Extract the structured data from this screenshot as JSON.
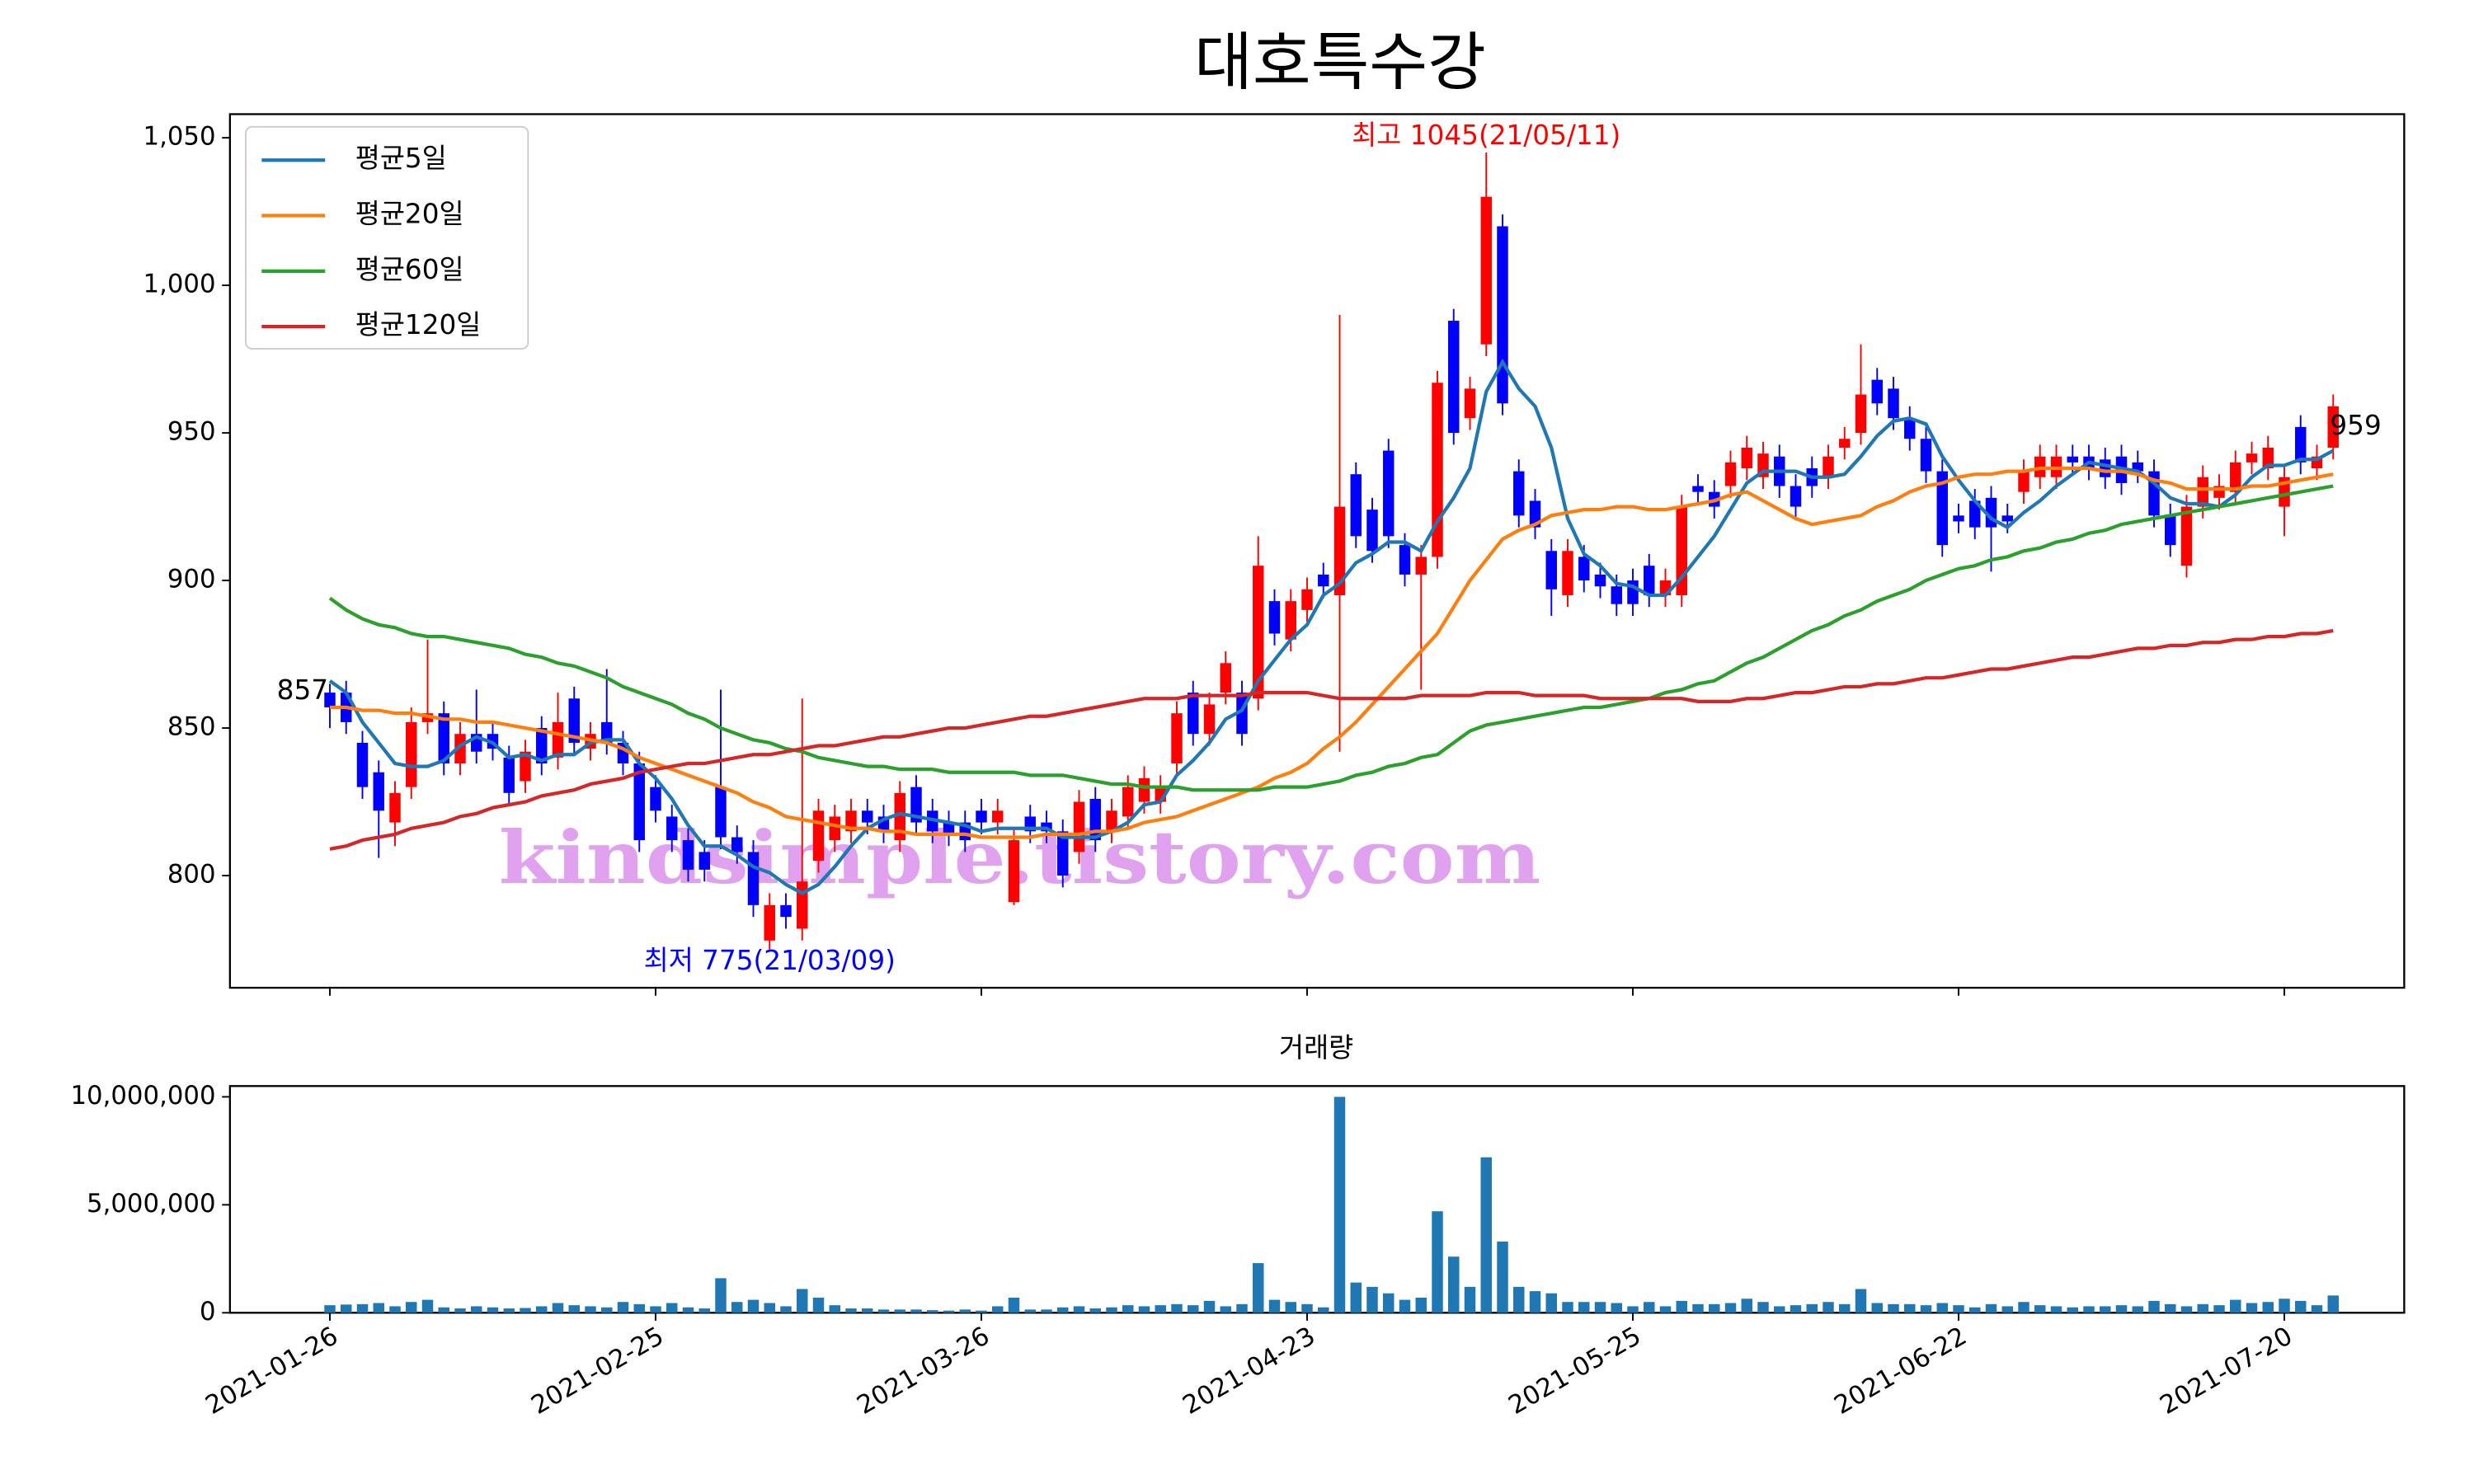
{
  "chart_data": {
    "type": "candlestick",
    "title": "대호특수강",
    "up_color": "#ff0000",
    "down_color": "#0000ff",
    "x": [
      "2021-01-26",
      "2021-01-27",
      "2021-01-28",
      "2021-01-29",
      "2021-02-01",
      "2021-02-02",
      "2021-02-03",
      "2021-02-04",
      "2021-02-05",
      "2021-02-08",
      "2021-02-09",
      "2021-02-10",
      "2021-02-15",
      "2021-02-16",
      "2021-02-17",
      "2021-02-18",
      "2021-02-19",
      "2021-02-22",
      "2021-02-23",
      "2021-02-24",
      "2021-02-25",
      "2021-02-26",
      "2021-03-02",
      "2021-03-03",
      "2021-03-04",
      "2021-03-05",
      "2021-03-08",
      "2021-03-09",
      "2021-03-10",
      "2021-03-11",
      "2021-03-12",
      "2021-03-15",
      "2021-03-16",
      "2021-03-17",
      "2021-03-18",
      "2021-03-19",
      "2021-03-22",
      "2021-03-23",
      "2021-03-24",
      "2021-03-25",
      "2021-03-26",
      "2021-03-29",
      "2021-03-30",
      "2021-03-31",
      "2021-04-01",
      "2021-04-02",
      "2021-04-05",
      "2021-04-06",
      "2021-04-07",
      "2021-04-08",
      "2021-04-09",
      "2021-04-12",
      "2021-04-13",
      "2021-04-14",
      "2021-04-15",
      "2021-04-16",
      "2021-04-19",
      "2021-04-20",
      "2021-04-21",
      "2021-04-22",
      "2021-04-23",
      "2021-04-26",
      "2021-04-27",
      "2021-04-28",
      "2021-04-29",
      "2021-04-30",
      "2021-05-03",
      "2021-05-04",
      "2021-05-06",
      "2021-05-07",
      "2021-05-10",
      "2021-05-11",
      "2021-05-12",
      "2021-05-13",
      "2021-05-14",
      "2021-05-17",
      "2021-05-18",
      "2021-05-20",
      "2021-05-21",
      "2021-05-24",
      "2021-05-25",
      "2021-05-26",
      "2021-05-27",
      "2021-05-28",
      "2021-05-31",
      "2021-06-01",
      "2021-06-02",
      "2021-06-03",
      "2021-06-04",
      "2021-06-07",
      "2021-06-08",
      "2021-06-09",
      "2021-06-10",
      "2021-06-11",
      "2021-06-14",
      "2021-06-15",
      "2021-06-16",
      "2021-06-17",
      "2021-06-18",
      "2021-06-21",
      "2021-06-22",
      "2021-06-23",
      "2021-06-24",
      "2021-06-25",
      "2021-06-28",
      "2021-06-29",
      "2021-06-30",
      "2021-07-01",
      "2021-07-02",
      "2021-07-05",
      "2021-07-06",
      "2021-07-07",
      "2021-07-08",
      "2021-07-09",
      "2021-07-12",
      "2021-07-13",
      "2021-07-14",
      "2021-07-15",
      "2021-07-16",
      "2021-07-19",
      "2021-07-20",
      "2021-07-21",
      "2021-07-22",
      "2021-07-23"
    ],
    "open": [
      862,
      862,
      845,
      835,
      818,
      830,
      852,
      855,
      838,
      848,
      848,
      840,
      832,
      850,
      840,
      860,
      843,
      852,
      845,
      838,
      830,
      820,
      812,
      808,
      830,
      813,
      808,
      778,
      790,
      782,
      805,
      812,
      815,
      822,
      820,
      812,
      830,
      822,
      818,
      818,
      822,
      818,
      791,
      820,
      818,
      815,
      808,
      826,
      815,
      820,
      825,
      825,
      838,
      862,
      848,
      862,
      862,
      860,
      893,
      880,
      890,
      902,
      895,
      936,
      924,
      944,
      912,
      902,
      908,
      988,
      955,
      980,
      1020,
      937,
      927,
      910,
      895,
      908,
      902,
      898,
      900,
      905,
      895,
      895,
      932,
      930,
      932,
      938,
      935,
      942,
      932,
      938,
      935,
      945,
      950,
      968,
      965,
      955,
      948,
      937,
      922,
      927,
      928,
      922,
      930,
      935,
      935,
      942,
      942,
      941,
      942,
      940,
      937,
      922,
      905,
      925,
      928,
      930,
      940,
      938,
      925,
      952,
      938,
      945
    ],
    "high": [
      865,
      866,
      849,
      839,
      832,
      857,
      880,
      859,
      852,
      863,
      852,
      844,
      846,
      854,
      862,
      864,
      852,
      870,
      849,
      842,
      834,
      824,
      816,
      812,
      863,
      817,
      812,
      794,
      794,
      860,
      826,
      824,
      826,
      826,
      824,
      832,
      834,
      826,
      822,
      822,
      826,
      826,
      816,
      824,
      822,
      819,
      829,
      830,
      826,
      834,
      837,
      834,
      859,
      866,
      862,
      876,
      866,
      915,
      897,
      897,
      901,
      906,
      990,
      940,
      928,
      948,
      916,
      912,
      971,
      992,
      969,
      1045,
      1024,
      941,
      931,
      914,
      914,
      912,
      906,
      902,
      904,
      909,
      904,
      929,
      936,
      934,
      944,
      949,
      947,
      946,
      936,
      942,
      946,
      952,
      980,
      972,
      969,
      959,
      952,
      941,
      926,
      931,
      932,
      926,
      941,
      946,
      946,
      946,
      946,
      945,
      946,
      944,
      941,
      926,
      929,
      939,
      936,
      944,
      947,
      949,
      939,
      956,
      946,
      963
    ],
    "low": [
      850,
      848,
      826,
      806,
      810,
      826,
      848,
      834,
      834,
      838,
      839,
      824,
      828,
      834,
      836,
      841,
      839,
      841,
      834,
      808,
      818,
      808,
      798,
      798,
      809,
      804,
      786,
      775,
      782,
      778,
      801,
      808,
      811,
      814,
      811,
      808,
      814,
      811,
      810,
      808,
      814,
      814,
      790,
      811,
      811,
      796,
      804,
      808,
      811,
      816,
      821,
      821,
      834,
      844,
      844,
      858,
      844,
      856,
      878,
      876,
      886,
      894,
      842,
      911,
      906,
      911,
      898,
      863,
      904,
      946,
      951,
      976,
      956,
      918,
      914,
      888,
      891,
      896,
      894,
      888,
      888,
      891,
      891,
      891,
      926,
      921,
      928,
      934,
      931,
      928,
      921,
      928,
      931,
      941,
      946,
      956,
      951,
      944,
      933,
      908,
      916,
      914,
      903,
      916,
      926,
      931,
      931,
      936,
      934,
      931,
      929,
      933,
      918,
      908,
      901,
      921,
      924,
      926,
      936,
      934,
      915,
      936,
      934,
      941
    ],
    "close": [
      857,
      852,
      830,
      822,
      828,
      852,
      855,
      838,
      848,
      842,
      843,
      828,
      842,
      838,
      852,
      845,
      848,
      845,
      838,
      812,
      822,
      812,
      802,
      802,
      813,
      808,
      790,
      790,
      786,
      798,
      822,
      820,
      822,
      818,
      815,
      828,
      818,
      815,
      814,
      812,
      818,
      822,
      812,
      815,
      815,
      800,
      825,
      812,
      822,
      830,
      833,
      830,
      855,
      848,
      858,
      872,
      848,
      905,
      882,
      893,
      897,
      898,
      925,
      915,
      910,
      915,
      902,
      908,
      967,
      950,
      965,
      1030,
      960,
      922,
      918,
      897,
      910,
      900,
      898,
      892,
      892,
      895,
      900,
      925,
      930,
      925,
      940,
      945,
      943,
      932,
      925,
      932,
      942,
      948,
      963,
      960,
      955,
      948,
      937,
      912,
      920,
      918,
      918,
      920,
      937,
      942,
      942,
      940,
      938,
      935,
      933,
      937,
      922,
      912,
      925,
      935,
      932,
      940,
      943,
      945,
      935,
      940,
      942,
      959
    ],
    "series": [
      {
        "name": "평균5일",
        "color": "#1f77b4",
        "values": [
          866,
          862,
          852,
          845,
          838,
          837,
          837,
          839,
          844,
          847,
          845,
          840,
          841,
          839,
          841,
          841,
          845,
          846,
          846,
          838,
          833,
          826,
          817,
          810,
          810,
          807,
          803,
          801,
          797,
          794,
          797,
          803,
          810,
          816,
          819,
          821,
          820,
          819,
          818,
          817,
          815,
          816,
          816,
          816,
          816,
          813,
          813,
          813,
          815,
          818,
          824,
          825,
          834,
          839,
          845,
          853,
          856,
          866,
          873,
          880,
          885,
          895,
          899,
          906,
          909,
          913,
          913,
          910,
          920,
          928,
          938,
          964,
          974,
          965,
          959,
          945,
          921,
          909,
          905,
          899,
          898,
          895,
          895,
          901,
          908,
          915,
          924,
          933,
          937,
          937,
          937,
          935,
          935,
          936,
          942,
          949,
          954,
          955,
          953,
          942,
          934,
          927,
          921,
          918,
          923,
          927,
          932,
          936,
          940,
          939,
          938,
          937,
          933,
          928,
          926,
          926,
          925,
          929,
          935,
          939,
          939,
          941,
          941,
          944
        ]
      },
      {
        "name": "평균20일",
        "color": "#ff7f0e",
        "values": [
          857,
          857,
          856,
          856,
          855,
          855,
          854,
          853,
          853,
          852,
          852,
          851,
          850,
          849,
          848,
          847,
          846,
          845,
          843,
          840,
          838,
          836,
          834,
          832,
          830,
          828,
          825,
          823,
          820,
          819,
          818,
          817,
          816,
          816,
          815,
          815,
          814,
          814,
          814,
          814,
          813,
          813,
          813,
          813,
          814,
          814,
          814,
          815,
          815,
          816,
          818,
          819,
          820,
          822,
          824,
          826,
          828,
          830,
          833,
          835,
          838,
          843,
          847,
          852,
          858,
          864,
          870,
          876,
          882,
          891,
          900,
          907,
          914,
          917,
          919,
          922,
          923,
          924,
          924,
          925,
          925,
          924,
          924,
          925,
          926,
          927,
          929,
          930,
          927,
          924,
          921,
          919,
          920,
          921,
          922,
          925,
          927,
          930,
          932,
          933,
          935,
          936,
          936,
          937,
          937,
          938,
          938,
          938,
          938,
          937,
          937,
          936,
          934,
          933,
          931,
          931,
          931,
          931,
          932,
          932,
          933,
          934,
          935,
          936
        ]
      },
      {
        "name": "평균60일",
        "color": "#2ca02c",
        "values": [
          894,
          890,
          887,
          885,
          884,
          882,
          881,
          881,
          880,
          879,
          878,
          877,
          875,
          874,
          872,
          871,
          869,
          867,
          864,
          862,
          860,
          858,
          855,
          853,
          850,
          848,
          846,
          845,
          843,
          842,
          840,
          839,
          838,
          837,
          837,
          836,
          836,
          836,
          835,
          835,
          835,
          835,
          835,
          834,
          834,
          834,
          833,
          832,
          831,
          831,
          830,
          830,
          830,
          829,
          829,
          829,
          829,
          829,
          830,
          830,
          830,
          831,
          832,
          834,
          835,
          837,
          838,
          840,
          841,
          845,
          849,
          851,
          852,
          853,
          854,
          855,
          856,
          857,
          857,
          858,
          859,
          860,
          862,
          863,
          865,
          866,
          869,
          872,
          874,
          877,
          880,
          883,
          885,
          888,
          890,
          893,
          895,
          897,
          900,
          902,
          904,
          905,
          907,
          908,
          910,
          911,
          913,
          914,
          916,
          917,
          919,
          920,
          921,
          922,
          923,
          924,
          925,
          926,
          927,
          928,
          929,
          930,
          931,
          932
        ]
      },
      {
        "name": "평균120일",
        "color": "#d62728",
        "values": [
          809,
          810,
          812,
          813,
          814,
          816,
          817,
          818,
          820,
          821,
          823,
          824,
          825,
          827,
          828,
          829,
          831,
          832,
          833,
          835,
          836,
          837,
          838,
          838,
          839,
          840,
          841,
          841,
          842,
          843,
          844,
          844,
          845,
          846,
          847,
          847,
          848,
          849,
          850,
          850,
          851,
          852,
          853,
          854,
          854,
          855,
          856,
          857,
          858,
          859,
          860,
          860,
          860,
          861,
          861,
          861,
          861,
          862,
          862,
          862,
          862,
          861,
          860,
          860,
          860,
          860,
          860,
          861,
          861,
          861,
          861,
          862,
          862,
          862,
          861,
          861,
          861,
          861,
          860,
          860,
          860,
          860,
          860,
          860,
          859,
          859,
          859,
          860,
          860,
          861,
          862,
          862,
          863,
          864,
          864,
          865,
          865,
          866,
          867,
          867,
          868,
          869,
          870,
          870,
          871,
          872,
          873,
          874,
          874,
          875,
          876,
          877,
          877,
          878,
          878,
          879,
          879,
          880,
          880,
          881,
          881,
          882,
          882,
          883
        ]
      }
    ],
    "ylim": [
      762,
      1058
    ],
    "yticks": [
      800,
      850,
      900,
      950,
      {
        "value": 1000,
        "label": "1,000"
      },
      {
        "value": 1050,
        "label": "1,050"
      }
    ],
    "xticks": [
      "2021-01-26",
      "2021-02-25",
      "2021-03-26",
      "2021-04-23",
      "2021-05-25",
      "2021-06-22",
      "2021-07-20"
    ],
    "legend": "upper left",
    "annotations": [
      {
        "text": "최고 1045(21/05/11)",
        "color": "#ff0000"
      },
      {
        "text": "최저 775(21/03/09)",
        "color": "#0000ff"
      },
      {
        "text": "857",
        "color": "#000000"
      },
      {
        "text": "959",
        "color": "#000000"
      }
    ],
    "watermark": "kindsimple.tistory.com",
    "volume": {
      "type": "bar",
      "title": "거래량",
      "color": "#1f77b4",
      "values": [
        350000,
        380000,
        400000,
        450000,
        300000,
        500000,
        600000,
        250000,
        200000,
        300000,
        250000,
        200000,
        220000,
        300000,
        450000,
        350000,
        300000,
        250000,
        500000,
        400000,
        300000,
        450000,
        250000,
        200000,
        1600000,
        500000,
        600000,
        450000,
        300000,
        1100000,
        700000,
        350000,
        200000,
        200000,
        150000,
        150000,
        150000,
        120000,
        100000,
        150000,
        100000,
        300000,
        700000,
        150000,
        150000,
        250000,
        300000,
        200000,
        250000,
        350000,
        300000,
        350000,
        400000,
        350000,
        550000,
        300000,
        400000,
        2300000,
        600000,
        500000,
        400000,
        250000,
        10000000,
        1400000,
        1200000,
        900000,
        600000,
        700000,
        4700000,
        2600000,
        1200000,
        7200000,
        3300000,
        1200000,
        1000000,
        900000,
        500000,
        500000,
        500000,
        450000,
        300000,
        500000,
        300000,
        550000,
        400000,
        400000,
        450000,
        650000,
        500000,
        300000,
        350000,
        400000,
        500000,
        400000,
        1100000,
        450000,
        400000,
        400000,
        350000,
        450000,
        350000,
        250000,
        400000,
        300000,
        500000,
        350000,
        300000,
        250000,
        300000,
        300000,
        350000,
        300000,
        550000,
        400000,
        300000,
        400000,
        350000,
        600000,
        450000,
        500000,
        650000,
        550000,
        350000,
        800000
      ],
      "ylim": [
        0,
        10500000
      ],
      "yticks": [
        0,
        {
          "value": 5000000,
          "label": "5,000,000"
        },
        {
          "value": 10000000,
          "label": "10,000,000"
        }
      ]
    }
  }
}
